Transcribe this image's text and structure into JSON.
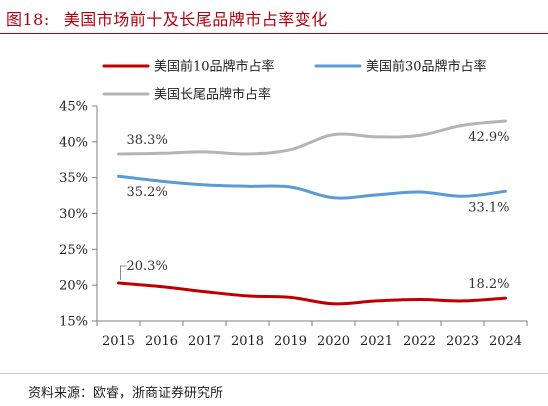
{
  "figure": {
    "number": "图18:",
    "title": "美国市场前十及长尾品牌市占率变化",
    "source": "资料来源：欧睿，浙商证券研究所"
  },
  "colors": {
    "title": "#b3000f",
    "top10": "#c00000",
    "top30": "#5b9bd5",
    "longtail": "#b4b4b4"
  },
  "chart_data": {
    "type": "line",
    "x": [
      "2015",
      "2016",
      "2017",
      "2018",
      "2019",
      "2020",
      "2021",
      "2022",
      "2023",
      "2024"
    ],
    "ylim": [
      15,
      45
    ],
    "yticks": [
      15,
      20,
      25,
      30,
      35,
      40,
      45
    ],
    "ytick_labels": [
      "15%",
      "20%",
      "25%",
      "30%",
      "35%",
      "40%",
      "45%"
    ],
    "grid": false,
    "legend_position": "top",
    "series": [
      {
        "name": "美国前10品牌市占率",
        "color": "#c00000",
        "values": [
          20.3,
          19.8,
          19.1,
          18.5,
          18.3,
          17.4,
          17.8,
          18.0,
          17.8,
          18.2
        ],
        "labels": [
          {
            "index": 0,
            "text": "20.3%",
            "placement": "above-right"
          },
          {
            "index": 9,
            "text": "18.2%",
            "placement": "above-left"
          }
        ]
      },
      {
        "name": "美国前30品牌市占率",
        "color": "#5b9bd5",
        "values": [
          35.2,
          34.5,
          34.0,
          33.8,
          33.7,
          32.2,
          32.6,
          33.0,
          32.4,
          33.1
        ],
        "labels": [
          {
            "index": 0,
            "text": "35.2%",
            "placement": "below-right"
          },
          {
            "index": 9,
            "text": "33.1%",
            "placement": "below-left"
          }
        ]
      },
      {
        "name": "美国长尾品牌市占率",
        "color": "#b4b4b4",
        "values": [
          38.3,
          38.4,
          38.6,
          38.3,
          38.9,
          41.0,
          40.7,
          40.9,
          42.3,
          42.9
        ],
        "labels": [
          {
            "index": 0,
            "text": "38.3%",
            "placement": "above-right"
          },
          {
            "index": 9,
            "text": "42.9%",
            "placement": "below-left"
          }
        ]
      }
    ]
  }
}
